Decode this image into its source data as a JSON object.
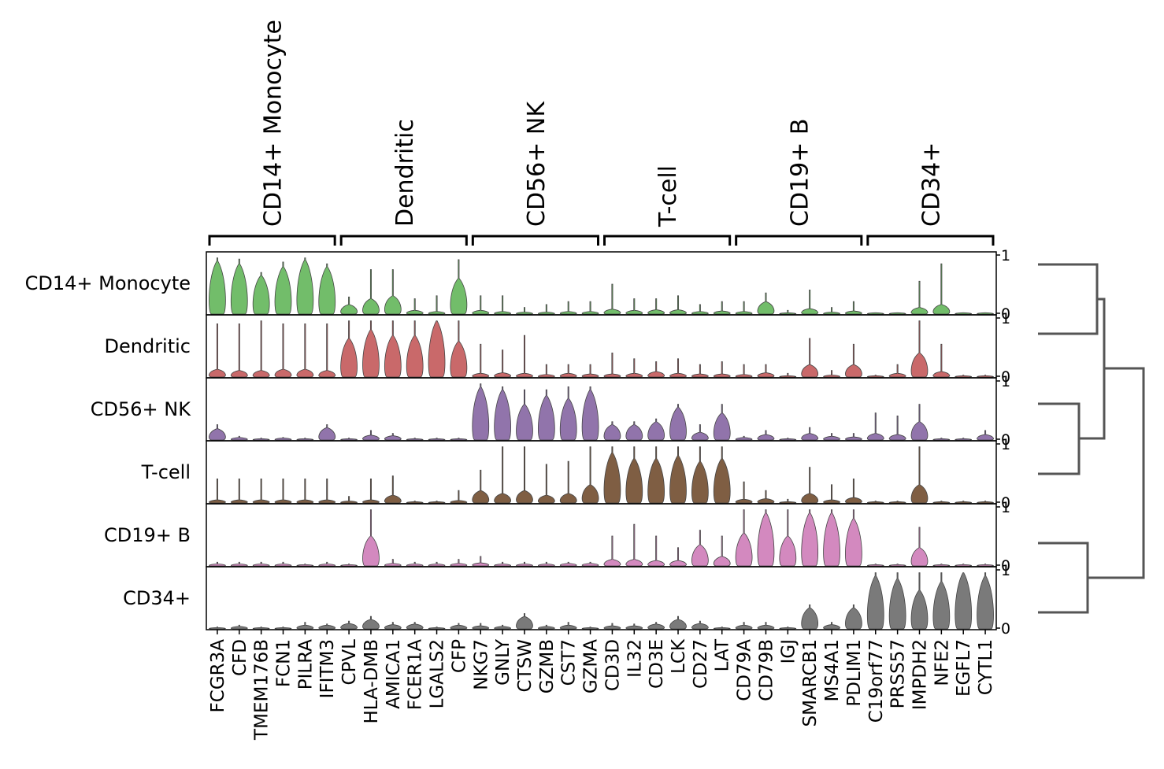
{
  "chart_data": {
    "type": "violin",
    "categories": [
      "FCGR3A",
      "CFD",
      "TMEM176B",
      "FCN1",
      "PILRA",
      "IFITM3",
      "CPVL",
      "HLA-DMB",
      "AMICA1",
      "FCER1A",
      "LGALS2",
      "CFP",
      "NKG7",
      "GNLY",
      "CTSW",
      "GZMB",
      "CST7",
      "GZMA",
      "CD3D",
      "IL32",
      "CD3E",
      "LCK",
      "CD27",
      "LAT",
      "CD79A",
      "CD79B",
      "IGJ",
      "SMARCB1",
      "MS4A1",
      "PDLIM1",
      "C19orf77",
      "PRSS57",
      "IMPDH2",
      "NFE2",
      "EGFL7",
      "CYTL1"
    ],
    "groups": [
      {
        "label": "CD14+ Monocyte",
        "span": [
          0,
          5
        ]
      },
      {
        "label": "Dendritic",
        "span": [
          6,
          11
        ]
      },
      {
        "label": "CD56+ NK",
        "span": [
          12,
          17
        ]
      },
      {
        "label": "T-cell",
        "span": [
          18,
          23
        ]
      },
      {
        "label": "CD19+ B",
        "span": [
          24,
          29
        ]
      },
      {
        "label": "CD34+",
        "span": [
          30,
          35
        ]
      }
    ],
    "ylim": [
      0,
      1
    ],
    "yticks": [
      0,
      1
    ],
    "series": [
      {
        "name": "CD14+ Monocyte",
        "color": "#72bd6a",
        "values": [
          0.9,
          0.85,
          0.65,
          0.8,
          0.92,
          0.8,
          0.15,
          0.25,
          0.3,
          0.05,
          0.03,
          0.6,
          0.05,
          0.03,
          0.02,
          0.02,
          0.03,
          0.03,
          0.07,
          0.05,
          0.06,
          0.06,
          0.03,
          0.04,
          0.03,
          0.2,
          0.01,
          0.08,
          0.02,
          0.04,
          0.01,
          0.01,
          0.1,
          0.15,
          0.01,
          0.01
        ],
        "max": [
          0.95,
          0.93,
          0.7,
          0.88,
          0.95,
          0.85,
          0.28,
          0.75,
          0.75,
          0.25,
          0.3,
          0.92,
          0.3,
          0.3,
          0.1,
          0.15,
          0.2,
          0.2,
          0.5,
          0.25,
          0.25,
          0.3,
          0.15,
          0.2,
          0.2,
          0.35,
          0.05,
          0.4,
          0.1,
          0.2,
          0.01,
          0.01,
          0.55,
          0.85,
          0.01,
          0.01
        ]
      },
      {
        "name": "Dendritic",
        "color": "#c9696a",
        "values": [
          0.12,
          0.1,
          0.1,
          0.12,
          0.12,
          0.1,
          0.65,
          0.8,
          0.7,
          0.7,
          0.95,
          0.6,
          0.05,
          0.06,
          0.05,
          0.03,
          0.05,
          0.04,
          0.04,
          0.05,
          0.08,
          0.05,
          0.04,
          0.04,
          0.03,
          0.06,
          0.01,
          0.2,
          0.02,
          0.2,
          0.01,
          0.05,
          0.4,
          0.08,
          0.01,
          0.01
        ],
        "max": [
          0.9,
          0.9,
          0.95,
          0.9,
          0.9,
          0.9,
          0.95,
          0.95,
          0.95,
          0.95,
          0.95,
          0.95,
          0.55,
          0.45,
          0.7,
          0.2,
          0.2,
          0.2,
          0.4,
          0.3,
          0.25,
          0.3,
          0.2,
          0.25,
          0.2,
          0.2,
          0.05,
          0.65,
          0.1,
          0.55,
          0.02,
          0.2,
          0.95,
          0.55,
          0.02,
          0.02
        ]
      },
      {
        "name": "CD56+ NK",
        "color": "#9174ab",
        "values": [
          0.18,
          0.03,
          0.01,
          0.02,
          0.01,
          0.2,
          0.01,
          0.07,
          0.06,
          0.01,
          0.01,
          0.01,
          0.9,
          0.85,
          0.6,
          0.75,
          0.7,
          0.85,
          0.25,
          0.25,
          0.3,
          0.55,
          0.12,
          0.45,
          0.03,
          0.08,
          0.01,
          0.1,
          0.05,
          0.04,
          0.1,
          0.08,
          0.3,
          0.01,
          0.01,
          0.08
        ],
        "max": [
          0.25,
          0.05,
          0.02,
          0.03,
          0.02,
          0.25,
          0.02,
          0.15,
          0.1,
          0.02,
          0.02,
          0.02,
          0.95,
          0.9,
          0.85,
          0.85,
          0.9,
          0.9,
          0.3,
          0.3,
          0.35,
          0.6,
          0.25,
          0.6,
          0.05,
          0.15,
          0.02,
          0.2,
          0.1,
          0.1,
          0.45,
          0.4,
          0.6,
          0.02,
          0.02,
          0.15
        ]
      },
      {
        "name": "T-cell",
        "color": "#7f5e43",
        "values": [
          0.04,
          0.04,
          0.04,
          0.04,
          0.04,
          0.04,
          0.02,
          0.04,
          0.12,
          0.01,
          0.01,
          0.03,
          0.2,
          0.15,
          0.2,
          0.12,
          0.15,
          0.3,
          0.85,
          0.75,
          0.75,
          0.8,
          0.7,
          0.75,
          0.05,
          0.06,
          0.01,
          0.15,
          0.04,
          0.08,
          0.01,
          0.01,
          0.3,
          0.01,
          0.01,
          0.01
        ],
        "max": [
          0.4,
          0.4,
          0.4,
          0.4,
          0.4,
          0.4,
          0.1,
          0.4,
          0.45,
          0.02,
          0.02,
          0.2,
          0.55,
          0.95,
          0.95,
          0.65,
          0.7,
          0.95,
          0.95,
          0.95,
          0.95,
          0.95,
          0.95,
          0.95,
          0.35,
          0.2,
          0.05,
          0.6,
          0.3,
          0.4,
          0.02,
          0.02,
          0.95,
          0.02,
          0.02,
          0.02
        ]
      },
      {
        "name": "CD19+ B",
        "color": "#d389bf",
        "values": [
          0.02,
          0.02,
          0.02,
          0.02,
          0.01,
          0.02,
          0.01,
          0.5,
          0.03,
          0.02,
          0.02,
          0.03,
          0.04,
          0.02,
          0.02,
          0.02,
          0.03,
          0.03,
          0.1,
          0.1,
          0.08,
          0.08,
          0.35,
          0.15,
          0.55,
          0.9,
          0.5,
          0.9,
          0.9,
          0.8,
          0.01,
          0.01,
          0.3,
          0.01,
          0.01,
          0.01
        ],
        "max": [
          0.05,
          0.05,
          0.05,
          0.05,
          0.02,
          0.05,
          0.02,
          0.95,
          0.1,
          0.05,
          0.05,
          0.1,
          0.15,
          0.05,
          0.05,
          0.05,
          0.05,
          0.05,
          0.5,
          0.7,
          0.5,
          0.3,
          0.6,
          0.5,
          0.95,
          0.95,
          0.95,
          0.95,
          0.95,
          0.95,
          0.02,
          0.02,
          0.65,
          0.02,
          0.02,
          0.02
        ]
      },
      {
        "name": "CD34+",
        "color": "#7a7a7a",
        "values": [
          0.01,
          0.03,
          0.01,
          0.01,
          0.05,
          0.05,
          0.08,
          0.15,
          0.06,
          0.07,
          0.01,
          0.05,
          0.04,
          0.03,
          0.2,
          0.03,
          0.05,
          0.01,
          0.04,
          0.04,
          0.07,
          0.15,
          0.08,
          0.01,
          0.05,
          0.05,
          0.01,
          0.35,
          0.06,
          0.35,
          0.9,
          0.85,
          0.65,
          0.8,
          0.95,
          0.9
        ],
        "max": [
          0.02,
          0.05,
          0.02,
          0.02,
          0.1,
          0.07,
          0.12,
          0.2,
          0.1,
          0.1,
          0.02,
          0.08,
          0.08,
          0.05,
          0.25,
          0.05,
          0.1,
          0.02,
          0.08,
          0.07,
          0.1,
          0.2,
          0.12,
          0.02,
          0.1,
          0.1,
          0.02,
          0.4,
          0.1,
          0.4,
          0.95,
          0.95,
          0.95,
          0.95,
          0.95,
          0.95
        ]
      }
    ]
  }
}
